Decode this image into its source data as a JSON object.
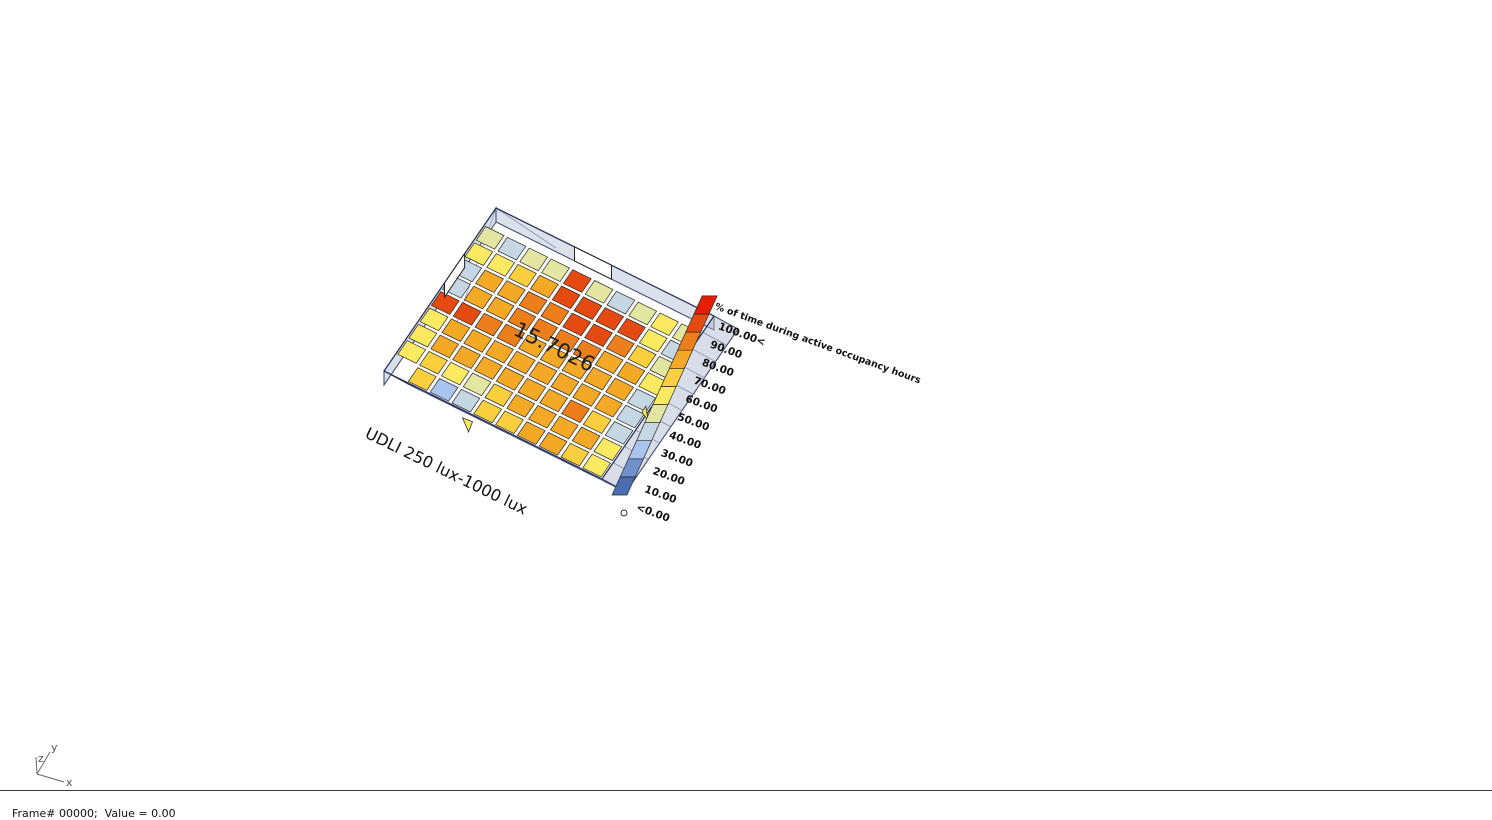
{
  "graph": {
    "title": "UDLI 250 lux-1000 lux",
    "center_value": "15.7026",
    "grid_values": [
      [
        null,
        null,
        null,
        null,
        null,
        null,
        null,
        null,
        null,
        null
      ],
      [
        32,
        28,
        35,
        38,
        82,
        30,
        25,
        35,
        40,
        30
      ],
      [
        45,
        42,
        58,
        62,
        84,
        86,
        80,
        84,
        48,
        28
      ],
      [
        20,
        68,
        65,
        72,
        78,
        80,
        82,
        76,
        58,
        35
      ],
      [
        22,
        64,
        68,
        74,
        78,
        76,
        74,
        68,
        62,
        40
      ],
      [
        84,
        80,
        76,
        70,
        68,
        66,
        66,
        64,
        60,
        25
      ],
      [
        48,
        64,
        66,
        64,
        62,
        62,
        64,
        64,
        60,
        22
      ],
      [
        40,
        62,
        62,
        62,
        64,
        62,
        60,
        78,
        56,
        20
      ],
      [
        44,
        55,
        40,
        30,
        52,
        60,
        62,
        62,
        60,
        42
      ],
      [
        null,
        52,
        18,
        20,
        50,
        56,
        60,
        62,
        58,
        44
      ]
    ]
  },
  "legend": {
    "title": "% of time during active occupancy hours",
    "labels": [
      "<0.00",
      "10.00",
      "20.00",
      "30.00",
      "40.00",
      "50.00",
      "60.00",
      "70.00",
      "80.00",
      "90.00",
      "100.00<"
    ],
    "colors": [
      "#4b6eb1",
      "#6f92cf",
      "#a9c4ee",
      "#c5d7e3",
      "#e3e6a1",
      "#fbe961",
      "#f9cf3d",
      "#f3a826",
      "#ec7f1c",
      "#e54a11",
      "#e51e06"
    ]
  },
  "axis_widget": {
    "x_label": "x",
    "y_label": "y",
    "z_label": "z"
  },
  "status_bar": {
    "text": "Frame# 00000;  Value = 0.00"
  }
}
